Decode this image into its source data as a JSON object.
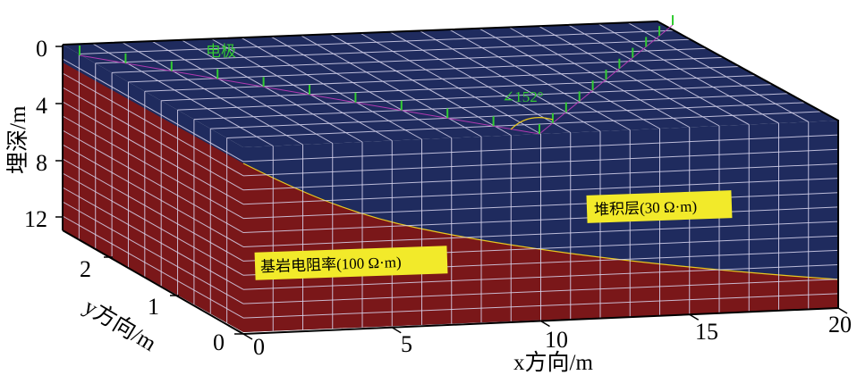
{
  "colors": {
    "overburden": "#1f2b5e",
    "bedrock": "#7a1719",
    "grid": "#d9d6ef",
    "electrode": "#33cc33",
    "survey_line": "#b23ab2",
    "interface": "#e8c820",
    "label_bg": "#f2ea2a"
  },
  "axes": {
    "depth": {
      "title": "埋深/m",
      "ticks": [
        "0",
        "4",
        "8",
        "12"
      ]
    },
    "y": {
      "title": "y方向/m",
      "ticks": [
        "0",
        "1",
        "2"
      ]
    },
    "x": {
      "title": "x方向/m",
      "ticks": [
        "0",
        "5",
        "10",
        "15",
        "20"
      ]
    }
  },
  "annotations": {
    "electrode": "电极",
    "angle": "∠152°",
    "overburden": "堆积层(30 Ω·m)",
    "bedrock": "基岩电阻率(100 Ω·m)"
  },
  "electrodes": {
    "segment1_count": 11,
    "segment2_count": 10
  }
}
